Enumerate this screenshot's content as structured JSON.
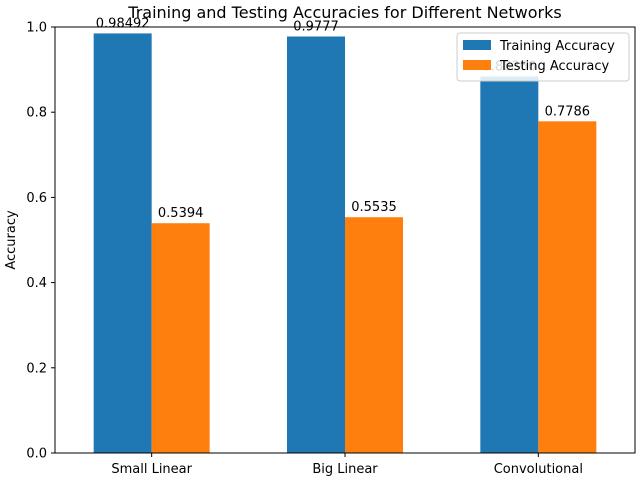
{
  "chart_data": {
    "type": "bar",
    "title": "Training and Testing Accuracies for Different Networks",
    "xlabel": "",
    "ylabel": "Accuracy",
    "categories": [
      "Small Linear",
      "Big Linear",
      "Convolutional"
    ],
    "ylim": [
      0,
      1.0
    ],
    "yticks": [
      0.0,
      0.2,
      0.4,
      0.6,
      0.8,
      1.0
    ],
    "ytick_labels": [
      "0.0",
      "0.2",
      "0.4",
      "0.6",
      "0.8",
      "1.0"
    ],
    "grid": false,
    "legend_position": "top-right",
    "series": [
      {
        "name": "Training Accuracy",
        "color": "#1f77b4",
        "values": [
          0.98492,
          0.9777,
          0.88366
        ],
        "labels": [
          "0.98492",
          "0.9777",
          "0.88366"
        ]
      },
      {
        "name": "Testing Accuracy",
        "color": "#ff7f0e",
        "values": [
          0.5394,
          0.5535,
          0.7786
        ],
        "labels": [
          "0.5394",
          "0.5535",
          "0.7786"
        ]
      }
    ]
  }
}
